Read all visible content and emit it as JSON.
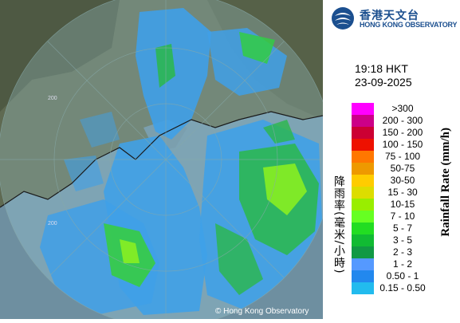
{
  "logo": {
    "name_cn": "香港天文台",
    "name_en": "HONG KONG OBSERVATORY"
  },
  "time": "19:18 HKT",
  "date": "23-09-2025",
  "legend": {
    "title_cn": "降雨率(毫米/小時)",
    "title_en": "Rainfall Rate (mm/h)",
    "items": [
      {
        "label": ">300",
        "color": "#ff00ff"
      },
      {
        "label": "200 - 300",
        "color": "#cc0088"
      },
      {
        "label": "150 - 200",
        "color": "#cc0033"
      },
      {
        "label": "100 - 150",
        "color": "#ee1100"
      },
      {
        "label": "75 - 100",
        "color": "#ff7700"
      },
      {
        "label": "50-75",
        "color": "#ee9900"
      },
      {
        "label": "30-50",
        "color": "#ffcc00"
      },
      {
        "label": "15 - 30",
        "color": "#dddd00"
      },
      {
        "label": "10-15",
        "color": "#99ee00"
      },
      {
        "label": "7 - 10",
        "color": "#66ff22"
      },
      {
        "label": "5 - 7",
        "color": "#22dd22"
      },
      {
        "label": "3 - 5",
        "color": "#11bb33"
      },
      {
        "label": "2 - 3",
        "color": "#119944"
      },
      {
        "label": "1 - 2",
        "color": "#5599ff"
      },
      {
        "label": "0.50 - 1",
        "color": "#2288ee"
      },
      {
        "label": "0.15 - 0.50",
        "color": "#22bbee"
      }
    ]
  },
  "map": {
    "range_rings": [
      "200",
      "200"
    ]
  },
  "copyright": "© Hong Kong Observatory"
}
